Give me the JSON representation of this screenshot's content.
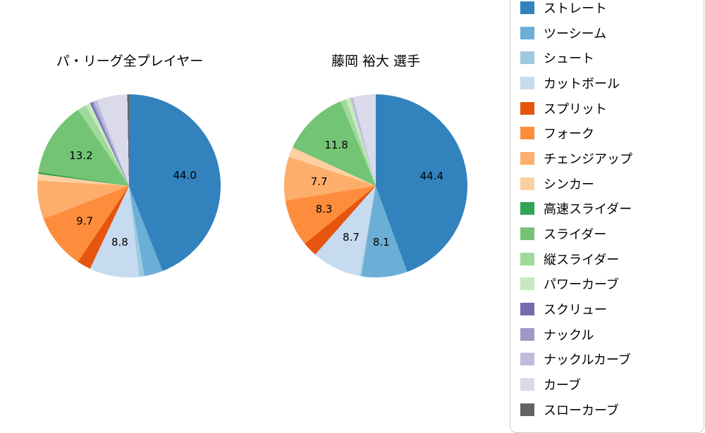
{
  "page": {
    "background": "#ffffff"
  },
  "legend": {
    "items": [
      {
        "label": "ストレート",
        "color": "#3182bd"
      },
      {
        "label": "ツーシーム",
        "color": "#6baed6"
      },
      {
        "label": "シュート",
        "color": "#9ecae1"
      },
      {
        "label": "カットボール",
        "color": "#c6dbef"
      },
      {
        "label": "スプリット",
        "color": "#e6550d"
      },
      {
        "label": "フォーク",
        "color": "#fd8d3c"
      },
      {
        "label": "チェンジアップ",
        "color": "#fdae6b"
      },
      {
        "label": "シンカー",
        "color": "#fdd0a2"
      },
      {
        "label": "高速スライダー",
        "color": "#31a354"
      },
      {
        "label": "スライダー",
        "color": "#74c476"
      },
      {
        "label": "縦スライダー",
        "color": "#a1d99b"
      },
      {
        "label": "パワーカーブ",
        "color": "#c7e9c0"
      },
      {
        "label": "スクリュー",
        "color": "#756bb1"
      },
      {
        "label": "ナックル",
        "color": "#9e9ac8"
      },
      {
        "label": "ナックルカーブ",
        "color": "#bcbddc"
      },
      {
        "label": "カーブ",
        "color": "#dadaeb"
      },
      {
        "label": "スローカーブ",
        "color": "#636363"
      }
    ]
  },
  "chart_data": [
    {
      "type": "pie",
      "title": "パ・リーグ全プレイヤー",
      "unit": "%",
      "start_angle_deg": 0,
      "direction": "clockwise",
      "slices": [
        {
          "name": "ストレート",
          "value": 44.0,
          "label": "44.0"
        },
        {
          "name": "ツーシーム",
          "value": 3.3
        },
        {
          "name": "シュート",
          "value": 0.9
        },
        {
          "name": "カットボール",
          "value": 8.8,
          "label": "8.8"
        },
        {
          "name": "スプリット",
          "value": 2.4
        },
        {
          "name": "フォーク",
          "value": 9.7,
          "label": "9.7"
        },
        {
          "name": "チェンジアップ",
          "value": 6.8
        },
        {
          "name": "シンカー",
          "value": 1.2
        },
        {
          "name": "高速スライダー",
          "value": 0.3
        },
        {
          "name": "スライダー",
          "value": 13.2,
          "label": "13.2"
        },
        {
          "name": "縦スライダー",
          "value": 1.6
        },
        {
          "name": "パワーカーブ",
          "value": 0.8
        },
        {
          "name": "スクリュー",
          "value": 0.3
        },
        {
          "name": "ナックル",
          "value": 0.4
        },
        {
          "name": "ナックルカーブ",
          "value": 0.6
        },
        {
          "name": "カーブ",
          "value": 5.4
        },
        {
          "name": "スローカーブ",
          "value": 0.3
        }
      ]
    },
    {
      "type": "pie",
      "title": "藤岡 裕大 選手",
      "unit": "%",
      "start_angle_deg": 0,
      "direction": "clockwise",
      "slices": [
        {
          "name": "ストレート",
          "value": 44.4,
          "label": "44.4"
        },
        {
          "name": "ツーシーム",
          "value": 8.1,
          "label": "8.1"
        },
        {
          "name": "シュート",
          "value": 0.3
        },
        {
          "name": "カットボール",
          "value": 8.7,
          "label": "8.7"
        },
        {
          "name": "スプリット",
          "value": 2.6
        },
        {
          "name": "フォーク",
          "value": 8.3,
          "label": "8.3"
        },
        {
          "name": "チェンジアップ",
          "value": 7.7,
          "label": "7.7"
        },
        {
          "name": "シンカー",
          "value": 1.8
        },
        {
          "name": "スライダー",
          "value": 11.8,
          "label": "11.8"
        },
        {
          "name": "縦スライダー",
          "value": 1.0
        },
        {
          "name": "パワーカーブ",
          "value": 0.8
        },
        {
          "name": "ナックルカーブ",
          "value": 0.5
        },
        {
          "name": "カーブ",
          "value": 4.0
        }
      ]
    }
  ]
}
